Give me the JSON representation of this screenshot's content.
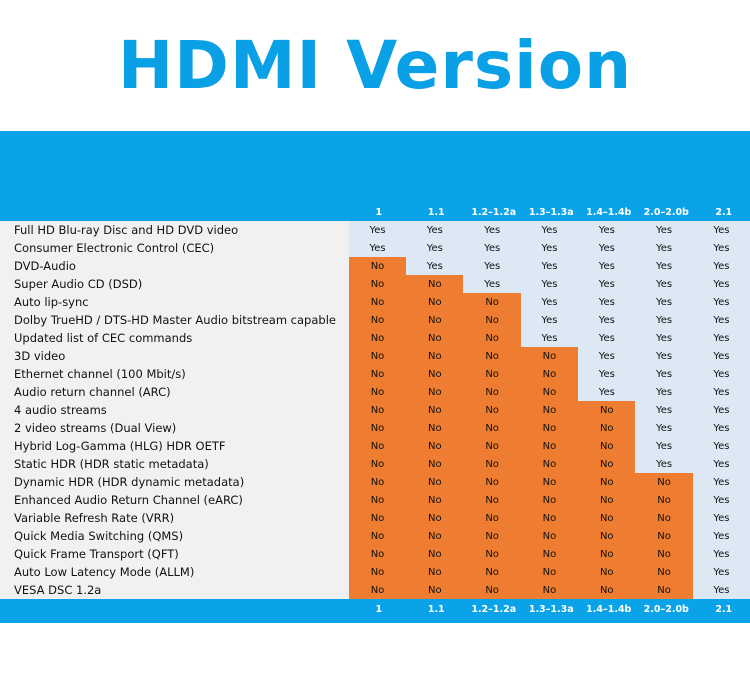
{
  "title": "HDMI Version",
  "columns": [
    "1",
    "1.1",
    "1.2–1.2a",
    "1.3–1.3a",
    "1.4–1.4b",
    "2.0–2.0b",
    "2.1"
  ],
  "colors": {
    "title": "#0aa0e6",
    "band": "#0aa3e8",
    "yes_bg": "#dce9f4",
    "no_bg": "#ee7d31"
  },
  "rows": [
    {
      "feature": "Full HD Blu-ray Disc and HD DVD video",
      "values": [
        "Yes",
        "Yes",
        "Yes",
        "Yes",
        "Yes",
        "Yes",
        "Yes"
      ]
    },
    {
      "feature": "Consumer Electronic Control (CEC)",
      "values": [
        "Yes",
        "Yes",
        "Yes",
        "Yes",
        "Yes",
        "Yes",
        "Yes"
      ]
    },
    {
      "feature": "DVD-Audio",
      "values": [
        "No",
        "Yes",
        "Yes",
        "Yes",
        "Yes",
        "Yes",
        "Yes"
      ]
    },
    {
      "feature": "Super Audio CD (DSD)",
      "values": [
        "No",
        "No",
        "Yes",
        "Yes",
        "Yes",
        "Yes",
        "Yes"
      ]
    },
    {
      "feature": "Auto lip-sync",
      "values": [
        "No",
        "No",
        "No",
        "Yes",
        "Yes",
        "Yes",
        "Yes"
      ]
    },
    {
      "feature": "Dolby TrueHD / DTS-HD Master Audio bitstream capable",
      "values": [
        "No",
        "No",
        "No",
        "Yes",
        "Yes",
        "Yes",
        "Yes"
      ]
    },
    {
      "feature": "Updated list of CEC commands",
      "values": [
        "No",
        "No",
        "No",
        "Yes",
        "Yes",
        "Yes",
        "Yes"
      ]
    },
    {
      "feature": "3D video",
      "values": [
        "No",
        "No",
        "No",
        "No",
        "Yes",
        "Yes",
        "Yes"
      ]
    },
    {
      "feature": "Ethernet channel (100 Mbit/s)",
      "values": [
        "No",
        "No",
        "No",
        "No",
        "Yes",
        "Yes",
        "Yes"
      ]
    },
    {
      "feature": "Audio return channel (ARC)",
      "values": [
        "No",
        "No",
        "No",
        "No",
        "Yes",
        "Yes",
        "Yes"
      ]
    },
    {
      "feature": "4 audio streams",
      "values": [
        "No",
        "No",
        "No",
        "No",
        "No",
        "Yes",
        "Yes"
      ]
    },
    {
      "feature": "2 video streams (Dual View)",
      "values": [
        "No",
        "No",
        "No",
        "No",
        "No",
        "Yes",
        "Yes"
      ]
    },
    {
      "feature": "Hybrid Log-Gamma (HLG) HDR OETF",
      "values": [
        "No",
        "No",
        "No",
        "No",
        "No",
        "Yes",
        "Yes"
      ]
    },
    {
      "feature": "Static HDR (HDR static metadata)",
      "values": [
        "No",
        "No",
        "No",
        "No",
        "No",
        "Yes",
        "Yes"
      ]
    },
    {
      "feature": "Dynamic HDR (HDR dynamic metadata)",
      "values": [
        "No",
        "No",
        "No",
        "No",
        "No",
        "No",
        "Yes"
      ]
    },
    {
      "feature": "Enhanced Audio Return Channel (eARC)",
      "values": [
        "No",
        "No",
        "No",
        "No",
        "No",
        "No",
        "Yes"
      ]
    },
    {
      "feature": "Variable Refresh Rate (VRR)",
      "values": [
        "No",
        "No",
        "No",
        "No",
        "No",
        "No",
        "Yes"
      ]
    },
    {
      "feature": "Quick Media Switching (QMS)",
      "values": [
        "No",
        "No",
        "No",
        "No",
        "No",
        "No",
        "Yes"
      ]
    },
    {
      "feature": "Quick Frame Transport (QFT)",
      "values": [
        "No",
        "No",
        "No",
        "No",
        "No",
        "No",
        "Yes"
      ]
    },
    {
      "feature": "Auto Low Latency Mode (ALLM)",
      "values": [
        "No",
        "No",
        "No",
        "No",
        "No",
        "No",
        "Yes"
      ]
    },
    {
      "feature": "VESA DSC 1.2a",
      "values": [
        "No",
        "No",
        "No",
        "No",
        "No",
        "No",
        "Yes"
      ]
    }
  ]
}
